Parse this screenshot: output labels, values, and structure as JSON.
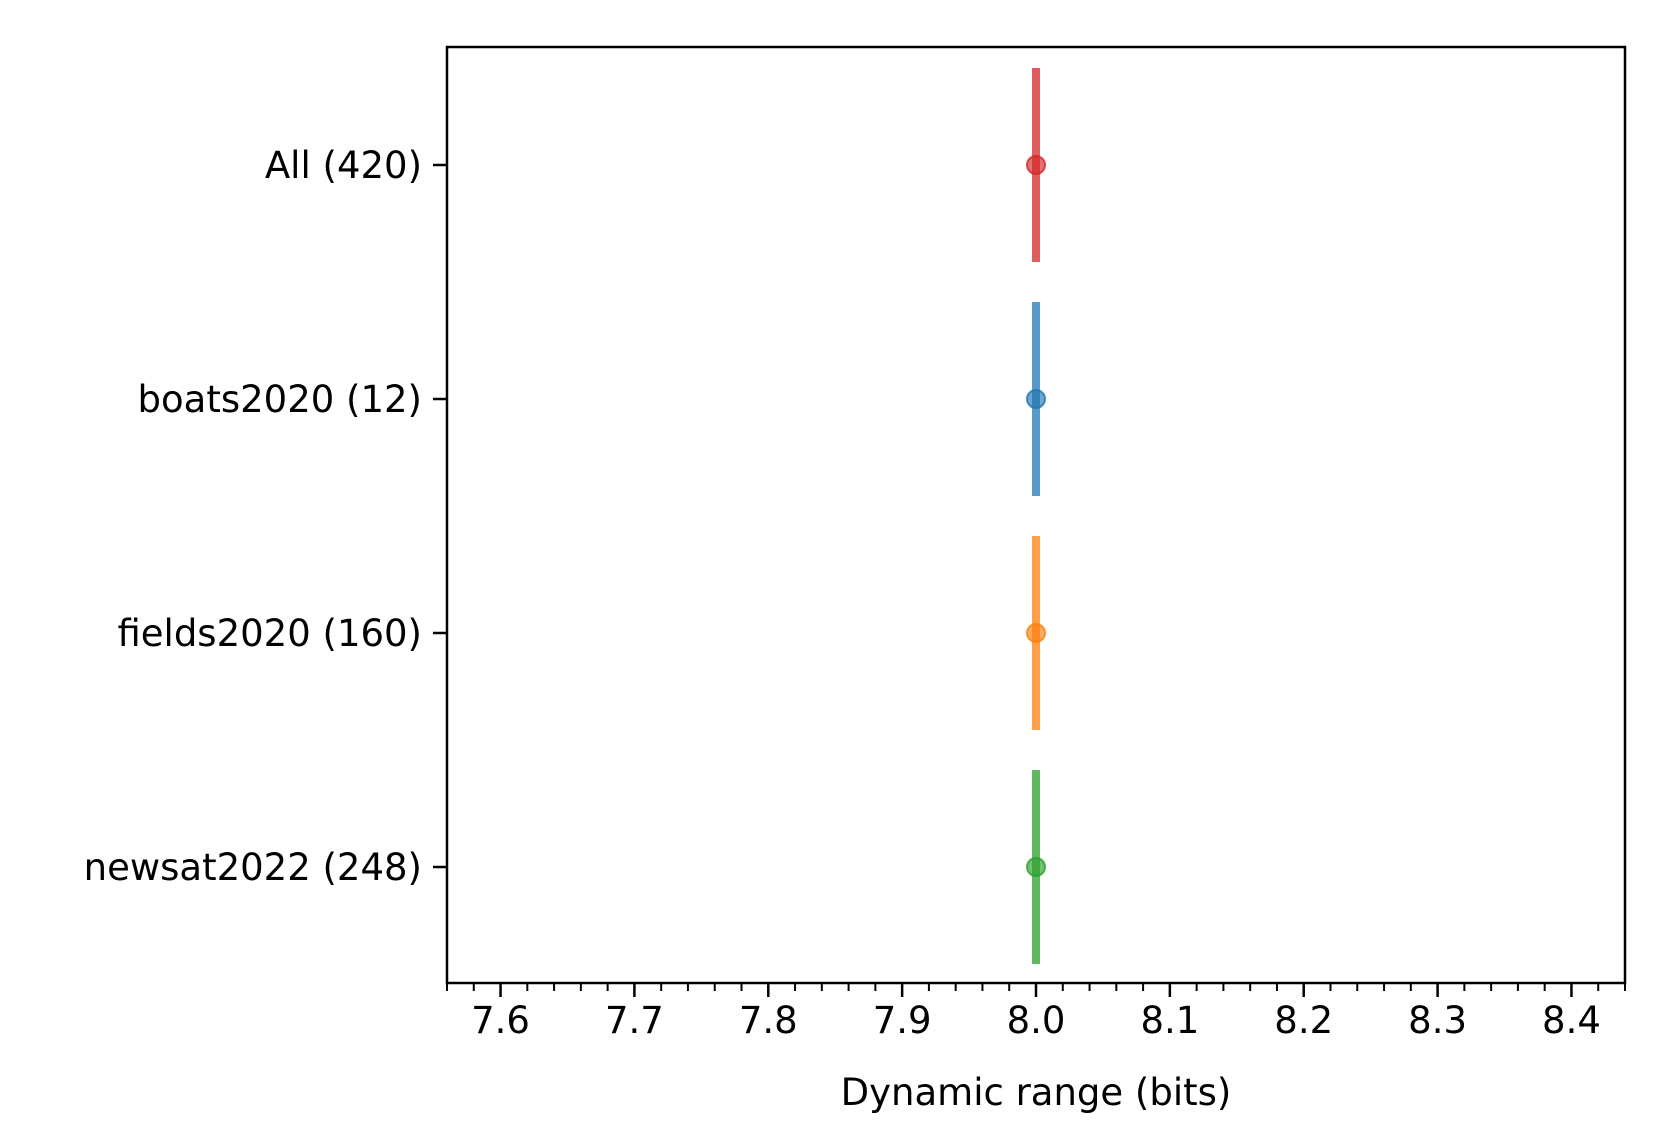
{
  "chart_data": {
    "type": "errorbar",
    "title": "",
    "xlabel": "Dynamic range (bits)",
    "ylabel": "",
    "xlim": [
      7.56,
      8.44
    ],
    "xticks": [
      7.6,
      7.7,
      7.8,
      7.9,
      8.0,
      8.1,
      8.2,
      8.3,
      8.4
    ],
    "xtick_labels": [
      "7.6",
      "7.7",
      "7.8",
      "7.9",
      "8.0",
      "8.1",
      "8.2",
      "8.3",
      "8.4"
    ],
    "minor_tick_step": 0.02,
    "grid": false,
    "legend": "none",
    "series": [
      {
        "label": "All (420)",
        "x": 8.0,
        "color": "#d62728"
      },
      {
        "label": "boats2020 (12)",
        "x": 8.0,
        "color": "#1f77b4"
      },
      {
        "label": "fields2020 (160)",
        "x": 8.0,
        "color": "#ff7f0e"
      },
      {
        "label": "newsat2022 (248)",
        "x": 8.0,
        "color": "#2ca02c"
      }
    ]
  }
}
